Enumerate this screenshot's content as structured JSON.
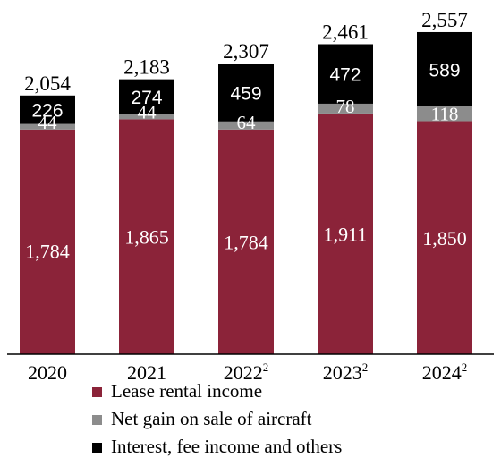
{
  "chart_data": {
    "type": "bar",
    "stacked": true,
    "categories": [
      "2020",
      "2021",
      "2022",
      "2023",
      "2024"
    ],
    "category_superscripts": [
      "",
      "",
      "2",
      "2",
      "2"
    ],
    "series": [
      {
        "name": "Lease rental income",
        "values": [
          1784,
          1865,
          1784,
          1911,
          1850
        ],
        "color": "#8b2339",
        "labels": [
          "1,784",
          "1,865",
          "1,784",
          "1,911",
          "1,850"
        ]
      },
      {
        "name": "Net gain on sale of aircraft",
        "values": [
          44,
          44,
          64,
          78,
          118
        ],
        "color": "#8c8c8c",
        "labels": [
          "44",
          "44",
          "64",
          "78",
          "118"
        ]
      },
      {
        "name": "Interest, fee income and others",
        "values": [
          226,
          274,
          459,
          472,
          589
        ],
        "color": "#000000",
        "labels": [
          "226",
          "274",
          "459",
          "472",
          "589"
        ]
      }
    ],
    "totals": [
      "2,054",
      "2,183",
      "2,307",
      "2,461",
      "2,557"
    ],
    "ylim": [
      0,
      2600
    ],
    "legend_position": "bottom"
  }
}
